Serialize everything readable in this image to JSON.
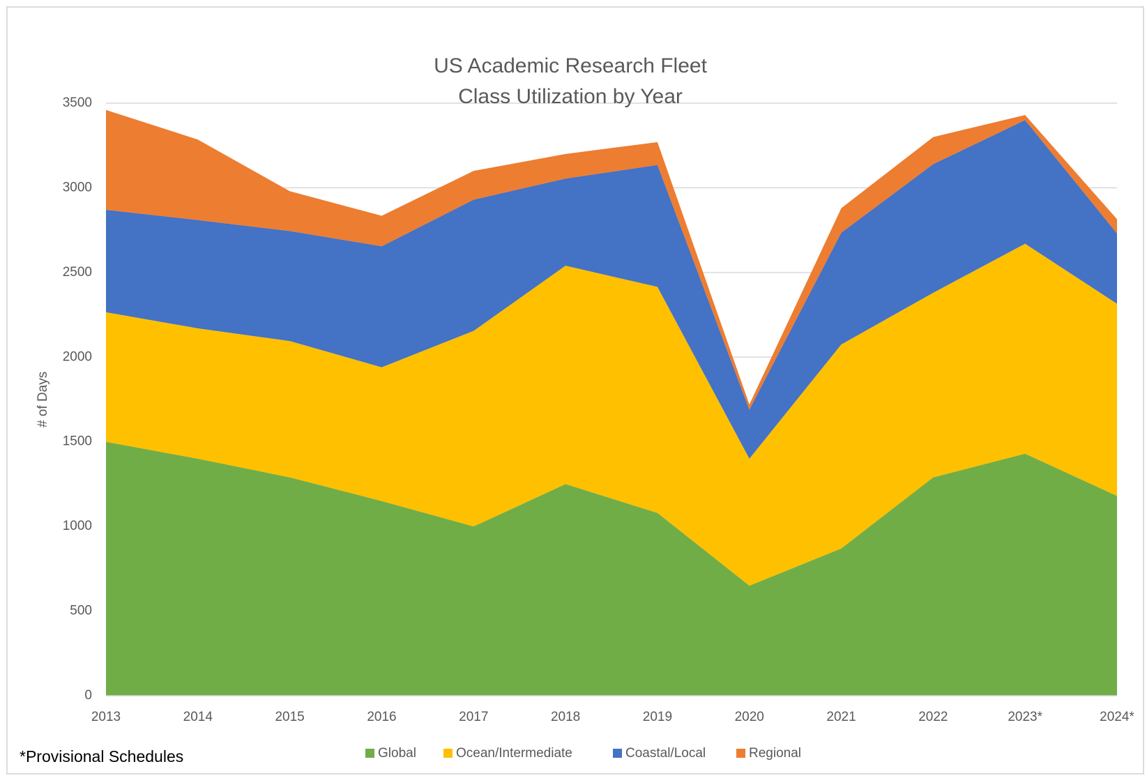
{
  "chart_data": {
    "type": "area",
    "stacked": true,
    "title": "US Academic Research Fleet",
    "subtitle": "Class Utilization by Year",
    "y_label": "# of Days",
    "annotation": "*Provisional Schedules",
    "categories": [
      "2013",
      "2014",
      "2015",
      "2016",
      "2017",
      "2018",
      "2019",
      "2020",
      "2021",
      "2022",
      "2023*",
      "2024*"
    ],
    "series": [
      {
        "name": "Global",
        "color": "#70ad47",
        "values": [
          1500,
          1400,
          1290,
          1150,
          1000,
          1250,
          1080,
          650,
          870,
          1290,
          1430,
          1180
        ]
      },
      {
        "name": "Ocean/Intermediate",
        "color": "#ffc000",
        "values": [
          765,
          770,
          805,
          790,
          1155,
          1290,
          1335,
          750,
          1205,
          1090,
          1240,
          1135
        ]
      },
      {
        "name": "Coastal/Local",
        "color": "#4472c4",
        "values": [
          605,
          640,
          650,
          715,
          775,
          515,
          720,
          290,
          660,
          760,
          730,
          415
        ]
      },
      {
        "name": "Regional",
        "color": "#ed7d31",
        "values": [
          590,
          475,
          235,
          180,
          170,
          145,
          135,
          30,
          145,
          160,
          30,
          85
        ]
      }
    ],
    "ylim": [
      0,
      3500
    ],
    "yticks": [
      0,
      500,
      1000,
      1500,
      2000,
      2500,
      3000,
      3500
    ],
    "grid": true,
    "legend": "bottom"
  }
}
